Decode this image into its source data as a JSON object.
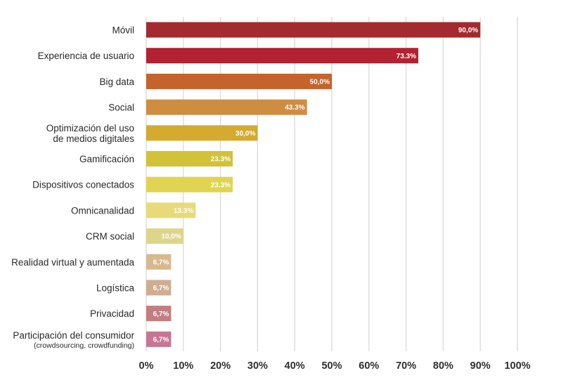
{
  "chart_data": {
    "type": "bar",
    "orientation": "horizontal",
    "categories": [
      {
        "lines": [
          "Móvil"
        ]
      },
      {
        "lines": [
          "Experiencia de usuario"
        ]
      },
      {
        "lines": [
          "Big data"
        ]
      },
      {
        "lines": [
          "Social"
        ]
      },
      {
        "lines": [
          "Optimización del uso",
          "de medios digitales"
        ]
      },
      {
        "lines": [
          "Gamificación"
        ]
      },
      {
        "lines": [
          "Dispositivos conectados"
        ]
      },
      {
        "lines": [
          "Omnicanalidad"
        ]
      },
      {
        "lines": [
          "CRM social"
        ]
      },
      {
        "lines": [
          "Realidad virtual y aumentada"
        ]
      },
      {
        "lines": [
          "Logística"
        ]
      },
      {
        "lines": [
          "Privacidad"
        ]
      },
      {
        "lines": [
          "Participación del consumidor",
          "(crowdsourcing, crowdfunding)"
        ]
      }
    ],
    "values": [
      90.0,
      73.3,
      50.0,
      43.3,
      30.0,
      23.3,
      23.3,
      13.3,
      10.0,
      6.7,
      6.7,
      6.7,
      6.7
    ],
    "data_labels": [
      "90,0%",
      "73.3%",
      "50,0%",
      "43.3%",
      "30,0%",
      "23.3%",
      "23.3%",
      "13.3%",
      "10,0%",
      "6,7%",
      "6,7%",
      "6,7%",
      "6,7%"
    ],
    "colors": [
      "#a32a2e",
      "#b22232",
      "#c4632c",
      "#cf8d41",
      "#d4aa2f",
      "#d1c23a",
      "#e0d451",
      "#e8da79",
      "#ddd68a",
      "#d6b98e",
      "#cfad93",
      "#c27e7e",
      "#c77592"
    ],
    "x_ticks": [
      "0%",
      "10%",
      "20%",
      "30%",
      "40%",
      "50%",
      "60%",
      "70%",
      "80%",
      "90%",
      "100%"
    ],
    "xlim": [
      0,
      100
    ],
    "grid": "vertical",
    "grid_color": "#dcdcdc",
    "legend": "none"
  }
}
